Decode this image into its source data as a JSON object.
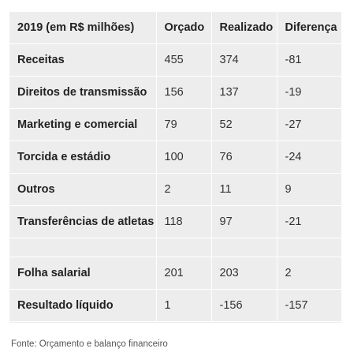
{
  "chart_data": {
    "type": "table",
    "columns": [
      "2019 (em R$ milhões)",
      "Orçado",
      "Realizado",
      "Diferença"
    ],
    "rows": [
      [
        "Receitas",
        "455",
        "374",
        "-81"
      ],
      [
        "Direitos de transmissão",
        "156",
        "137",
        "-19"
      ],
      [
        "Marketing e comercial",
        "79",
        "52",
        "-27"
      ],
      [
        "Torcida e estádio",
        "100",
        "76",
        "-24"
      ],
      [
        "Outros",
        "2",
        "11",
        "9"
      ],
      [
        "Transferências de atletas",
        "118",
        "97",
        "-21"
      ],
      [
        "",
        "",
        "",
        ""
      ],
      [
        "Folha salarial",
        "201",
        "203",
        "2"
      ],
      [
        "Resultado líquido",
        "1",
        "-156",
        "-157"
      ]
    ]
  },
  "source": "Fonte: Orçamento e balanço financeiro"
}
